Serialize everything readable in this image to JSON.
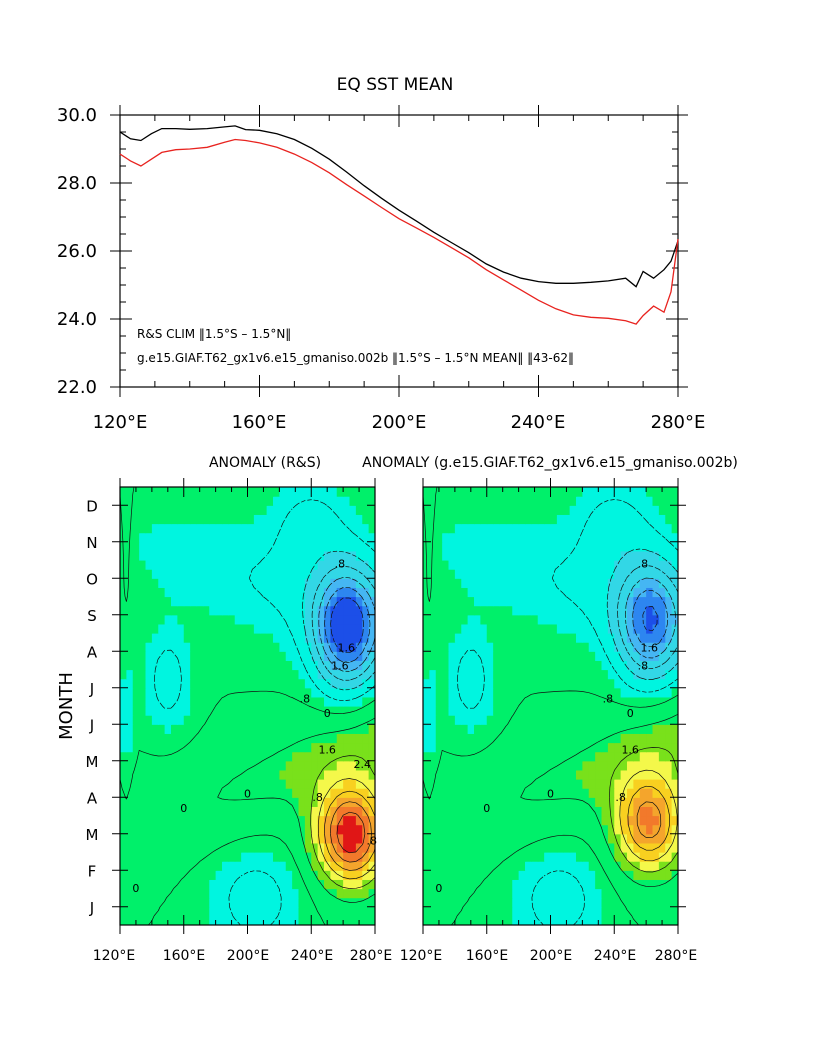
{
  "colors": {
    "obs_line": "#e8231f",
    "model_line": "#000000",
    "palette": [
      "#1c4fe8",
      "#2d86f0",
      "#45b6f3",
      "#32d7e6",
      "#00f5e0",
      "#00f06a",
      "#2ee81c",
      "#79e11b",
      "#f4f84a",
      "#f8d020",
      "#f4a52c",
      "#f2792b",
      "#e01616"
    ]
  },
  "chart_data": [
    {
      "type": "line",
      "title": "EQ SST MEAN",
      "xlabel": "",
      "ylabel": "",
      "xlim": [
        120,
        280
      ],
      "ylim": [
        22,
        30
      ],
      "xticks": [
        "120°E",
        "160°E",
        "200°E",
        "240°E",
        "280°E"
      ],
      "yticks": [
        "22.0",
        "24.0",
        "26.0",
        "28.0",
        "30.0"
      ],
      "series": [
        {
          "name": "g.e15.GIAF.T62_gx1v6.e15_gmaniso.002b ‖1.5°S – 1.5°N MEAN‖ ‖43-62‖",
          "color": "#000000",
          "x": [
            120,
            123,
            126,
            129,
            132,
            136,
            140,
            145,
            150,
            153,
            156,
            160,
            165,
            170,
            175,
            180,
            185,
            190,
            195,
            200,
            205,
            210,
            215,
            220,
            225,
            230,
            235,
            240,
            245,
            250,
            255,
            260,
            265,
            268,
            270,
            273,
            276,
            278,
            280
          ],
          "values": [
            29.5,
            29.3,
            29.25,
            29.45,
            29.6,
            29.6,
            29.58,
            29.6,
            29.65,
            29.68,
            29.57,
            29.55,
            29.45,
            29.28,
            29.02,
            28.7,
            28.32,
            27.92,
            27.55,
            27.2,
            26.88,
            26.55,
            26.25,
            25.95,
            25.62,
            25.38,
            25.2,
            25.1,
            25.05,
            25.05,
            25.08,
            25.12,
            25.2,
            24.95,
            25.4,
            25.2,
            25.45,
            25.7,
            26.3
          ]
        },
        {
          "name": "R&S CLIM ‖1.5°S – 1.5°N‖",
          "color": "#e8231f",
          "x": [
            120,
            123,
            126,
            129,
            132,
            136,
            140,
            145,
            150,
            153,
            156,
            160,
            165,
            170,
            175,
            180,
            185,
            190,
            195,
            200,
            205,
            210,
            215,
            220,
            225,
            230,
            235,
            240,
            245,
            250,
            255,
            260,
            265,
            268,
            270,
            273,
            276,
            278,
            280
          ],
          "values": [
            28.85,
            28.65,
            28.5,
            28.7,
            28.9,
            28.98,
            29.0,
            29.05,
            29.2,
            29.28,
            29.25,
            29.18,
            29.05,
            28.85,
            28.6,
            28.3,
            27.95,
            27.62,
            27.28,
            26.95,
            26.68,
            26.4,
            26.1,
            25.8,
            25.45,
            25.15,
            24.85,
            24.55,
            24.3,
            24.12,
            24.05,
            24.02,
            23.95,
            23.85,
            24.1,
            24.38,
            24.2,
            24.8,
            26.35
          ]
        }
      ]
    },
    {
      "type": "heatmap",
      "title": "ANOMALY (R&S)",
      "xlabel": "",
      "ylabel": "MONTH",
      "xlim": [
        120,
        280
      ],
      "xticks": [
        "120°E",
        "160°E",
        "200°E",
        "240°E",
        "280°E"
      ],
      "yticks": [
        "J",
        "F",
        "M",
        "A",
        "M",
        "J",
        "J",
        "A",
        "S",
        "O",
        "N",
        "D"
      ],
      "contour_labels": [
        "0",
        "0",
        "0",
        "0",
        ".8",
        ".8",
        "1.6",
        ".8",
        "1.6",
        "1.6",
        "2.4",
        ".8"
      ],
      "warm": {
        "lon": 265,
        "month": 3.0,
        "amp": 2.8
      },
      "cold": {
        "lon": 262,
        "month": 8.6,
        "amp": -2.5
      }
    },
    {
      "type": "heatmap",
      "title": "ANOMALY (g.e15.GIAF.T62_gx1v6.e15_gmaniso.002b)",
      "xlabel": "",
      "ylabel": "",
      "xlim": [
        120,
        280
      ],
      "xticks": [
        "120°E",
        "160°E",
        "200°E",
        "240°E",
        "280°E"
      ],
      "yticks": [],
      "contour_labels": [
        "0",
        "0",
        "0",
        "0",
        ".8",
        ".8",
        "1.6",
        ".8",
        "1.6",
        ".8"
      ],
      "warm": {
        "lon": 262,
        "month": 3.3,
        "amp": 2.2
      },
      "cold": {
        "lon": 262,
        "month": 8.8,
        "amp": -2.0
      }
    }
  ],
  "legend": {
    "obs_label": "R&S CLIM ‖1.5°S – 1.5°N‖",
    "model_label": "g.e15.GIAF.T62_gx1v6.e15_gmaniso.002b ‖1.5°S – 1.5°N MEAN‖ ‖43-62‖"
  },
  "bottom_ylabel": "MONTH"
}
